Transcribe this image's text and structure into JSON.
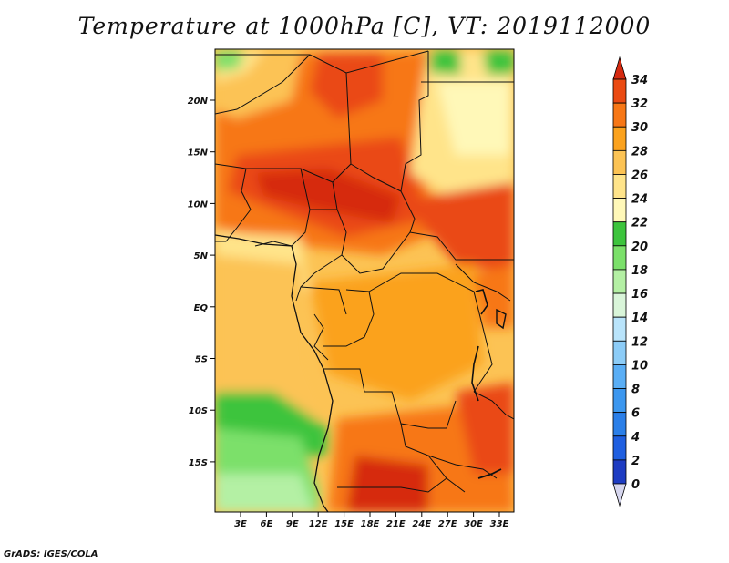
{
  "title": "Temperature at 1000hPa [C], VT: 2019112000",
  "credit": "GrADS: IGES/COLA",
  "map": {
    "lat_ticks": [
      "20N",
      "15N",
      "10N",
      "5N",
      "EQ",
      "5S",
      "10S",
      "15S"
    ],
    "lon_ticks": [
      "3E",
      "6E",
      "9E",
      "12E",
      "15E",
      "18E",
      "21E",
      "24E",
      "27E",
      "30E",
      "33E"
    ],
    "region": "Central & West Africa"
  },
  "colorbar": {
    "levels": [
      "0",
      "2",
      "4",
      "6",
      "8",
      "10",
      "12",
      "14",
      "16",
      "18",
      "20",
      "22",
      "24",
      "26",
      "28",
      "30",
      "32",
      "34"
    ],
    "colors": [
      "#1a0f7a",
      "#1e3cc2",
      "#1f5fe0",
      "#2b7fe8",
      "#3c97ef",
      "#5aaef5",
      "#8cccf7",
      "#b9e4fb",
      "#d9f5d9",
      "#b4f0a4",
      "#7be06a",
      "#3dc43d",
      "#fff8b8",
      "#ffe48a",
      "#fcc354",
      "#fba21e",
      "#f77716",
      "#ea4a12",
      "#d62a10"
    ]
  }
}
